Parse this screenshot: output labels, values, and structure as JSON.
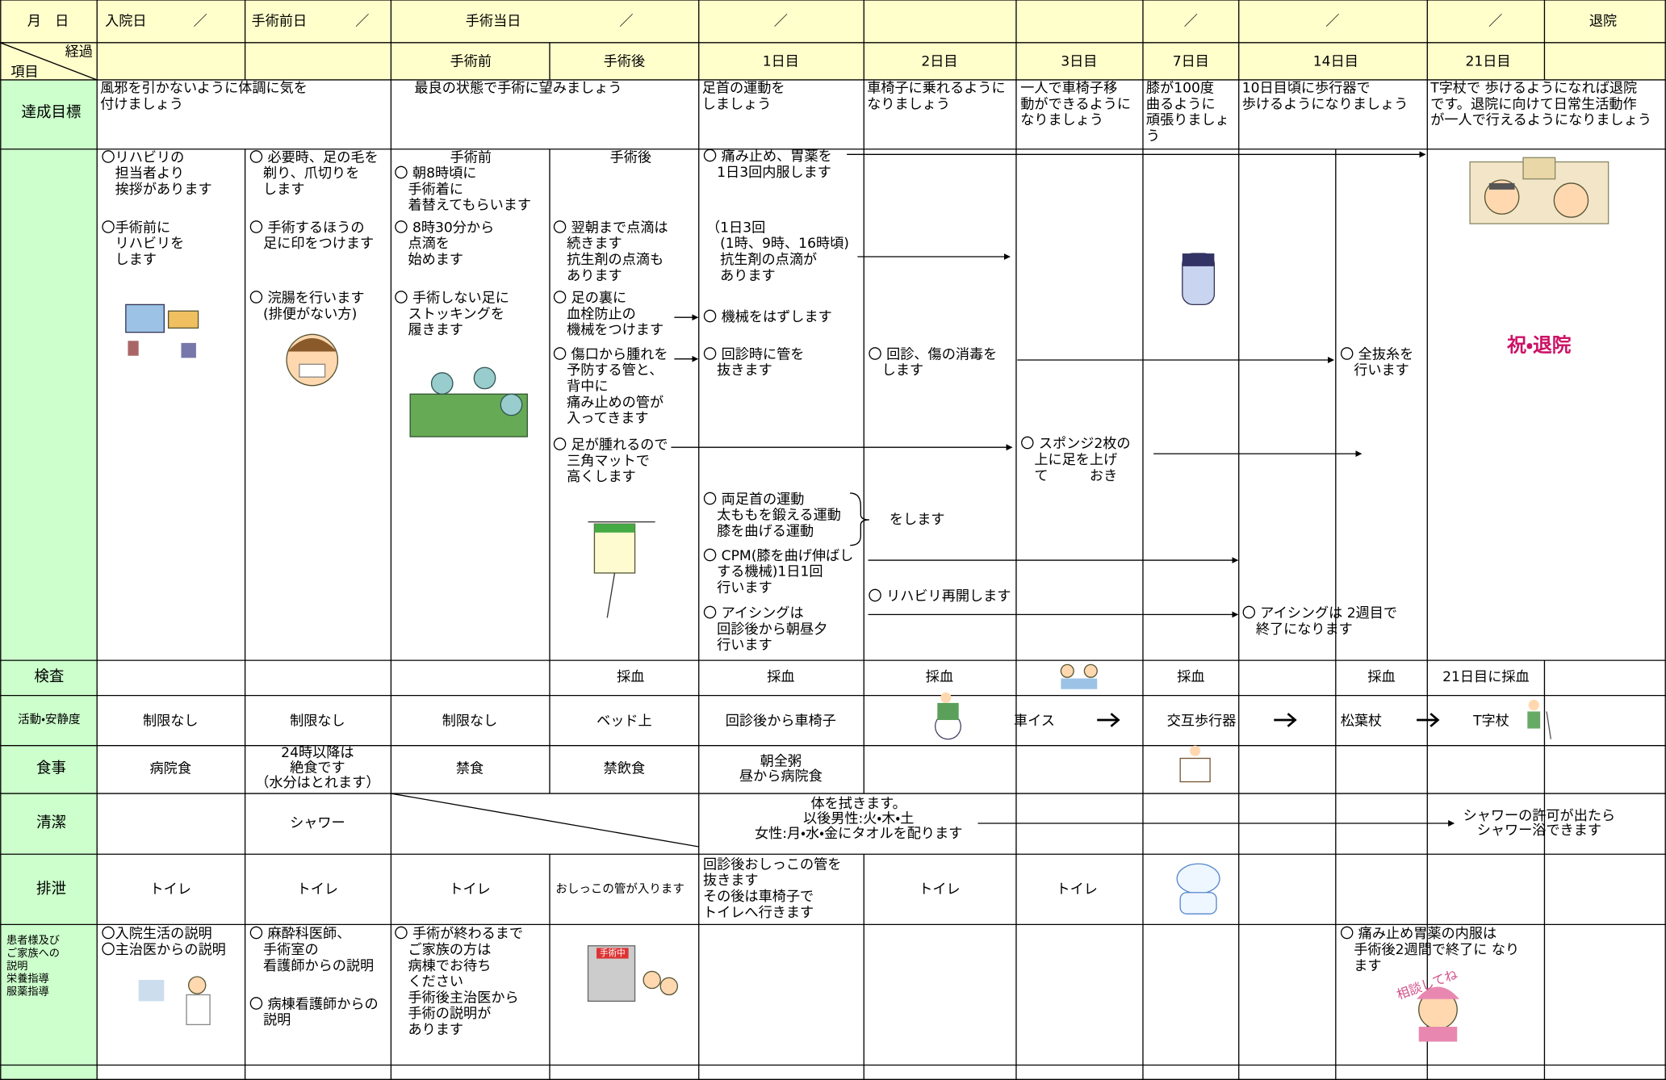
{
  "header": {
    "row1": [
      "月　日",
      "入院日",
      "／",
      "手術前日",
      "／",
      "手術当日",
      "／",
      "／",
      "／",
      "／",
      "／",
      "退院"
    ],
    "row2": [
      "経過",
      "項目",
      "手術前",
      "手術後",
      "1日目",
      "2日目",
      "3日目",
      "7日目",
      "14日目",
      "21日目"
    ]
  },
  "row_labels": {
    "goal": "達成目標",
    "exam": "検査",
    "activity": "活動・安静度",
    "meal": "食事",
    "hygiene": "清潔",
    "excretion": "排泄",
    "explanation": [
      "患者様及び",
      "ご家族への",
      "説明",
      "栄養指導",
      "服薬指導"
    ]
  },
  "goals": [
    [
      "風邪を引かないように体調に気を",
      "付けましょう"
    ],
    [
      "最良の状態で手術に望みましょう"
    ],
    [
      "足首の運動を",
      "しましょう"
    ],
    [
      "車椅子に乗れるように",
      "なりましょう"
    ],
    [
      "一人で車椅子移",
      "動ができるように",
      "なりましょう"
    ],
    [
      "膝が100度",
      "曲るように",
      "頑張りましょ",
      "う"
    ],
    [
      "10日目頃に歩行器で",
      "歩けるようになりましょう"
    ],
    [
      "T字杖で 歩けるようになれば退院",
      "です。退院に向けて日常生活動作",
      "が一人で行えるようになりましょう"
    ]
  ],
  "care": [
    [
      "〇リハビリの",
      "　担当者より",
      "　挨拶があります"
    ],
    [
      "〇手術前に",
      "　リハビリを",
      "　します"
    ],
    [
      "〇 必要時、足の毛を",
      "　剃り、爪切りを",
      "　します"
    ],
    [
      "〇 手術するほうの",
      "　足に印をつけます"
    ],
    [
      "〇 浣腸を行います",
      "　(排便がない方)"
    ],
    [
      "手術前"
    ],
    [
      "〇 朝8時頃に",
      "　手術着に",
      "　着替えてもらいます"
    ],
    [
      "〇 8時30分から",
      "　点滴を",
      "　始めます"
    ],
    [
      "〇 手術しない足に",
      "　ストッキングを",
      "　履きます"
    ],
    [
      "手術後"
    ],
    [
      "〇 翌朝まで点滴は",
      "　続きます",
      "　抗生剤の点滴も",
      "　あります"
    ],
    [
      "〇 足の裏に",
      "　血栓防止の",
      "　機械をつけます"
    ],
    [
      "〇 傷口から腫れを",
      "　予防する管と、",
      "　背中に",
      "　痛み止めの管が",
      "　入ってきます"
    ],
    [
      "〇 足が腫れるので",
      "　三角マットで",
      "　高くします"
    ],
    [
      "〇 痛み止め、胃薬を",
      "　1日3回内服します"
    ],
    [
      "（1日3回",
      "　(1時、9時、16時頃)",
      "　抗生剤の点滴が",
      "　あります"
    ],
    [
      "〇 機械をはずします"
    ],
    [
      "〇 回診時に管を",
      "　抜きます"
    ],
    [
      "〇 両足首の運動",
      "　太ももを鍛える運動",
      "　膝を曲げる運動"
    ],
    [
      "をします"
    ],
    [
      "〇 CPM(膝を曲げ伸ばし",
      "　する機械)1日1回",
      "　行います"
    ],
    [
      "〇 アイシングは",
      "　回診後から朝昼夕",
      "　行います"
    ],
    [
      "〇 回診、傷の消毒を",
      "　します"
    ],
    [
      "〇 リハビリ再開します"
    ],
    [
      "〇 スポンジ2枚の",
      "　上に足を上げ",
      "　て　　　おき"
    ],
    [
      "〇 全抜糸を",
      "　行います"
    ],
    [
      "〇 アイシングは 2週目で",
      "　終了になります"
    ]
  ],
  "illustration_labels": [
    "祝・退院",
    "手術中",
    "相談してね"
  ],
  "exam": [
    "採血",
    "採血",
    "採血",
    "採血",
    "採血",
    "21日目に採血"
  ],
  "activity": [
    "制限なし",
    "制限なし",
    "制限なし",
    "ベッド上",
    "回診後から車椅子",
    "車イス",
    "交互歩行器",
    "松葉杖",
    "T字杖"
  ],
  "meal": [
    [
      "病院食"
    ],
    [
      "24時以降は",
      "絶食です",
      "（水分はとれます）"
    ],
    [
      "禁食"
    ],
    [
      "禁飲食"
    ],
    [
      "朝全粥",
      "昼から病院食"
    ]
  ],
  "hygiene": [
    [
      "シャワー"
    ],
    [
      "体を拭きます。",
      "以後男性:火・木・土",
      "女性:月・水・金にタオルを配ります"
    ],
    [
      "シャワーの許可が出たら",
      "シャワー浴できます"
    ]
  ],
  "excretion": [
    [
      "トイレ"
    ],
    [
      "トイレ"
    ],
    [
      "トイレ"
    ],
    [
      "おしっこの管が入ります"
    ],
    [
      "回診後おしっこの管を",
      "抜きます",
      "その後は車椅子で",
      "トイレへ行きます"
    ],
    [
      "トイレ"
    ],
    [
      "トイレ"
    ]
  ],
  "explanation": [
    [
      "〇入院生活の説明",
      "〇主治医からの説明"
    ],
    [
      "〇 麻酔科医師、",
      "　手術室の",
      "　看護師からの説明"
    ],
    [
      "〇 病棟看護師からの",
      "　説明"
    ],
    [
      "〇 手術が終わるまで",
      "　ご家族の方は",
      "　病棟でお待ち",
      "　ください",
      "　手術後主治医から",
      "　手術の説明が",
      "　あります"
    ],
    [
      "〇 痛み止め胃薬の内服は",
      "　手術後2週間で終了に なり",
      "　ます"
    ]
  ]
}
